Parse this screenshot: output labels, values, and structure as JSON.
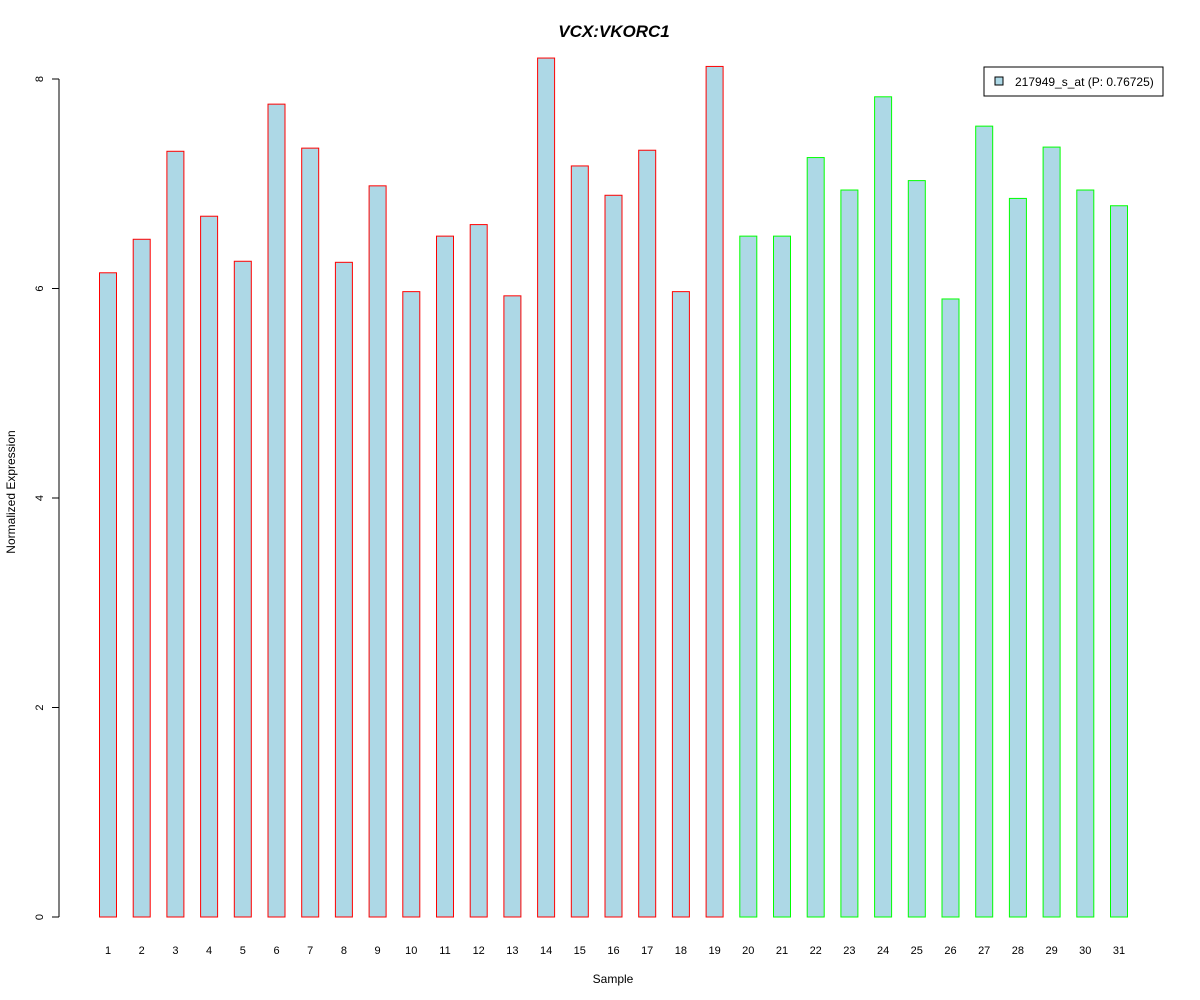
{
  "chart_data": {
    "type": "bar",
    "title": "VCX:VKORC1",
    "xlabel": "Sample",
    "ylabel": "Normalized Expression",
    "ylim": [
      0,
      8.2
    ],
    "yticks": [
      0,
      2,
      4,
      6,
      8
    ],
    "grid": false,
    "legend_position": "top-right",
    "categories": [
      "1",
      "2",
      "3",
      "4",
      "5",
      "6",
      "7",
      "8",
      "9",
      "10",
      "11",
      "12",
      "13",
      "14",
      "15",
      "16",
      "17",
      "18",
      "19",
      "20",
      "21",
      "22",
      "23",
      "24",
      "25",
      "26",
      "27",
      "28",
      "29",
      "30",
      "31"
    ],
    "series": [
      {
        "name": "217949_s_at (P: 0.76725)",
        "values": [
          6.15,
          6.47,
          7.31,
          6.69,
          6.26,
          7.76,
          7.34,
          6.25,
          6.98,
          5.97,
          6.5,
          6.61,
          5.93,
          8.2,
          7.17,
          6.89,
          7.32,
          5.97,
          8.12,
          6.5,
          6.5,
          7.25,
          6.94,
          7.83,
          7.03,
          5.9,
          7.55,
          6.86,
          7.35,
          6.94,
          6.79
        ],
        "group": [
          "a",
          "a",
          "a",
          "a",
          "a",
          "a",
          "a",
          "a",
          "a",
          "a",
          "a",
          "a",
          "a",
          "a",
          "a",
          "a",
          "a",
          "a",
          "a",
          "b",
          "b",
          "b",
          "b",
          "b",
          "b",
          "b",
          "b",
          "b",
          "b",
          "b",
          "b"
        ]
      }
    ],
    "colors": {
      "fill": "#add8e6",
      "group_a_border": "#ff0000",
      "group_b_border": "#00ff00",
      "title": "#0000cc",
      "axis": "#000000"
    }
  }
}
